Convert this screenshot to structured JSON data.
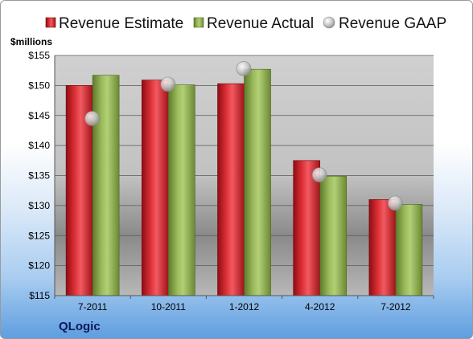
{
  "company": "QLogic",
  "colors": {
    "estimate": "#cc1f26",
    "actual": "#8fae4e",
    "gaap": "#c8c8c8"
  },
  "chart_data": {
    "type": "bar",
    "ylabel": "$millions",
    "ylim": [
      115,
      155
    ],
    "yticks": [
      115,
      120,
      125,
      130,
      135,
      140,
      145,
      150,
      155
    ],
    "ytick_labels": [
      "$115",
      "$120",
      "$125",
      "$130",
      "$135",
      "$140",
      "$145",
      "$150",
      "$155"
    ],
    "categories": [
      "7-2011",
      "10-2011",
      "1-2012",
      "4-2012",
      "7-2012"
    ],
    "grid": true,
    "legend_position": "top",
    "series": [
      {
        "name": "Revenue Estimate",
        "type": "bar",
        "values": [
          150.0,
          150.9,
          150.3,
          137.5,
          131.0
        ]
      },
      {
        "name": "Revenue Actual",
        "type": "bar",
        "values": [
          151.7,
          150.1,
          152.7,
          134.9,
          130.2
        ]
      },
      {
        "name": "Revenue GAAP",
        "type": "scatter",
        "values": [
          144.5,
          150.2,
          152.8,
          135.1,
          130.4
        ]
      }
    ]
  }
}
